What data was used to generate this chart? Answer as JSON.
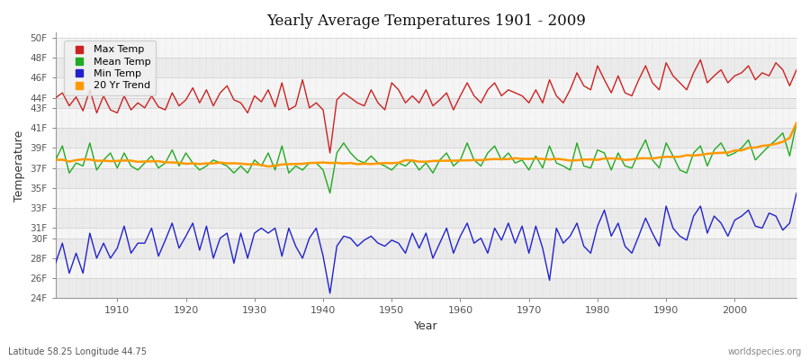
{
  "title": "Yearly Average Temperatures 1901 - 2009",
  "xlabel": "Year",
  "ylabel": "Temperature",
  "xlim": [
    1901,
    2009
  ],
  "ylim": [
    24,
    50.5
  ],
  "fig_bg": "#ffffff",
  "plot_bg": "#ffffff",
  "grid_color": "#dddddd",
  "band_colors": [
    "#ebebeb",
    "#f5f5f5"
  ],
  "legend_labels": [
    "Max Temp",
    "Mean Temp",
    "Min Temp",
    "20 Yr Trend"
  ],
  "legend_colors": [
    "#cc2222",
    "#22aa22",
    "#2222cc",
    "#ff9900"
  ],
  "subtitle_left": "Latitude 58.25 Longitude 44.75",
  "subtitle_right": "worldspecies.org",
  "ytick_vals": [
    24,
    26,
    28,
    30,
    31,
    33,
    35,
    37,
    39,
    41,
    43,
    44,
    46,
    48,
    50
  ],
  "ytick_labels": [
    "24F",
    "26F",
    "28F",
    "30F",
    "31F",
    "33F",
    "35F",
    "37F",
    "39F",
    "41F",
    "43F",
    "44F",
    "46F",
    "48F",
    "50F"
  ],
  "years": [
    1901,
    1902,
    1903,
    1904,
    1905,
    1906,
    1907,
    1908,
    1909,
    1910,
    1911,
    1912,
    1913,
    1914,
    1915,
    1916,
    1917,
    1918,
    1919,
    1920,
    1921,
    1922,
    1923,
    1924,
    1925,
    1926,
    1927,
    1928,
    1929,
    1930,
    1931,
    1932,
    1933,
    1934,
    1935,
    1936,
    1937,
    1938,
    1939,
    1940,
    1941,
    1942,
    1943,
    1944,
    1945,
    1946,
    1947,
    1948,
    1949,
    1950,
    1951,
    1952,
    1953,
    1954,
    1955,
    1956,
    1957,
    1958,
    1959,
    1960,
    1961,
    1962,
    1963,
    1964,
    1965,
    1966,
    1967,
    1968,
    1969,
    1970,
    1971,
    1972,
    1973,
    1974,
    1975,
    1976,
    1977,
    1978,
    1979,
    1980,
    1981,
    1982,
    1983,
    1984,
    1985,
    1986,
    1987,
    1988,
    1989,
    1990,
    1991,
    1992,
    1993,
    1994,
    1995,
    1996,
    1997,
    1998,
    1999,
    2000,
    2001,
    2002,
    2003,
    2004,
    2005,
    2006,
    2007,
    2008,
    2009
  ],
  "max_temp": [
    44.0,
    44.5,
    43.2,
    44.1,
    42.7,
    44.8,
    42.5,
    44.2,
    42.8,
    42.5,
    44.2,
    42.8,
    43.5,
    43.0,
    44.2,
    43.1,
    42.8,
    44.5,
    43.2,
    43.8,
    45.0,
    43.5,
    44.8,
    43.2,
    44.5,
    45.2,
    43.8,
    43.5,
    42.5,
    44.2,
    43.6,
    44.8,
    43.1,
    45.5,
    42.8,
    43.2,
    45.8,
    43.0,
    43.5,
    42.8,
    38.5,
    43.8,
    44.5,
    44.0,
    43.5,
    43.2,
    44.8,
    43.5,
    42.8,
    45.5,
    44.8,
    43.5,
    44.2,
    43.5,
    44.8,
    43.2,
    43.8,
    44.5,
    42.8,
    44.2,
    45.5,
    44.2,
    43.5,
    44.8,
    45.5,
    44.2,
    44.8,
    44.5,
    44.2,
    43.5,
    44.8,
    43.5,
    45.8,
    44.2,
    43.5,
    44.8,
    46.5,
    45.2,
    44.8,
    47.2,
    45.8,
    44.5,
    46.2,
    44.5,
    44.2,
    45.8,
    47.2,
    45.5,
    44.8,
    47.5,
    46.2,
    45.5,
    44.8,
    46.5,
    47.8,
    45.5,
    46.2,
    46.8,
    45.5,
    46.2,
    46.5,
    47.2,
    45.8,
    46.5,
    46.2,
    47.5,
    46.8,
    45.2,
    46.8
  ],
  "mean_temp": [
    37.8,
    39.2,
    36.5,
    37.5,
    37.2,
    39.5,
    36.8,
    37.8,
    38.5,
    37.0,
    38.5,
    37.2,
    36.8,
    37.5,
    38.2,
    37.0,
    37.5,
    38.8,
    37.2,
    38.5,
    37.5,
    36.8,
    37.2,
    37.8,
    37.5,
    37.2,
    36.5,
    37.2,
    36.5,
    37.8,
    37.2,
    38.5,
    36.8,
    39.2,
    36.5,
    37.2,
    36.8,
    37.5,
    37.5,
    36.8,
    34.5,
    38.5,
    39.5,
    38.5,
    37.8,
    37.5,
    38.2,
    37.5,
    37.2,
    36.8,
    37.5,
    37.2,
    37.8,
    36.8,
    37.5,
    36.5,
    37.8,
    38.5,
    37.2,
    37.8,
    39.5,
    37.8,
    37.2,
    38.5,
    39.2,
    37.8,
    38.5,
    37.5,
    37.8,
    36.8,
    38.2,
    37.0,
    39.2,
    37.5,
    37.2,
    36.8,
    39.5,
    37.2,
    37.0,
    38.8,
    38.5,
    36.8,
    38.5,
    37.2,
    37.0,
    38.5,
    39.8,
    37.8,
    37.0,
    39.5,
    38.2,
    36.8,
    36.5,
    38.5,
    39.2,
    37.2,
    38.8,
    39.5,
    38.2,
    38.5,
    39.0,
    39.8,
    37.8,
    38.5,
    39.2,
    39.8,
    40.5,
    38.2,
    41.5
  ],
  "min_temp": [
    27.5,
    29.5,
    26.5,
    28.5,
    26.5,
    30.5,
    28.0,
    29.5,
    28.0,
    29.0,
    31.2,
    28.5,
    29.5,
    29.5,
    31.0,
    28.2,
    29.8,
    31.5,
    29.0,
    30.2,
    31.5,
    28.8,
    31.2,
    28.0,
    30.0,
    30.5,
    27.5,
    30.5,
    28.0,
    30.5,
    31.0,
    30.5,
    31.0,
    28.2,
    31.0,
    29.2,
    28.0,
    30.0,
    31.0,
    28.2,
    24.5,
    29.2,
    30.2,
    30.0,
    29.2,
    29.8,
    30.2,
    29.5,
    29.2,
    29.8,
    29.5,
    28.5,
    30.5,
    29.0,
    30.5,
    28.0,
    29.5,
    31.0,
    28.5,
    30.2,
    31.5,
    29.5,
    30.0,
    28.5,
    31.0,
    29.8,
    31.5,
    29.5,
    31.2,
    28.5,
    31.2,
    29.0,
    25.8,
    31.0,
    29.5,
    30.2,
    31.5,
    29.2,
    28.5,
    31.2,
    32.8,
    30.2,
    31.5,
    29.2,
    28.5,
    30.2,
    32.0,
    30.5,
    29.2,
    33.2,
    31.0,
    30.2,
    29.8,
    32.2,
    33.2,
    30.5,
    32.2,
    31.5,
    30.2,
    31.8,
    32.2,
    32.8,
    31.2,
    31.0,
    32.5,
    32.2,
    30.8,
    31.5,
    34.5
  ]
}
